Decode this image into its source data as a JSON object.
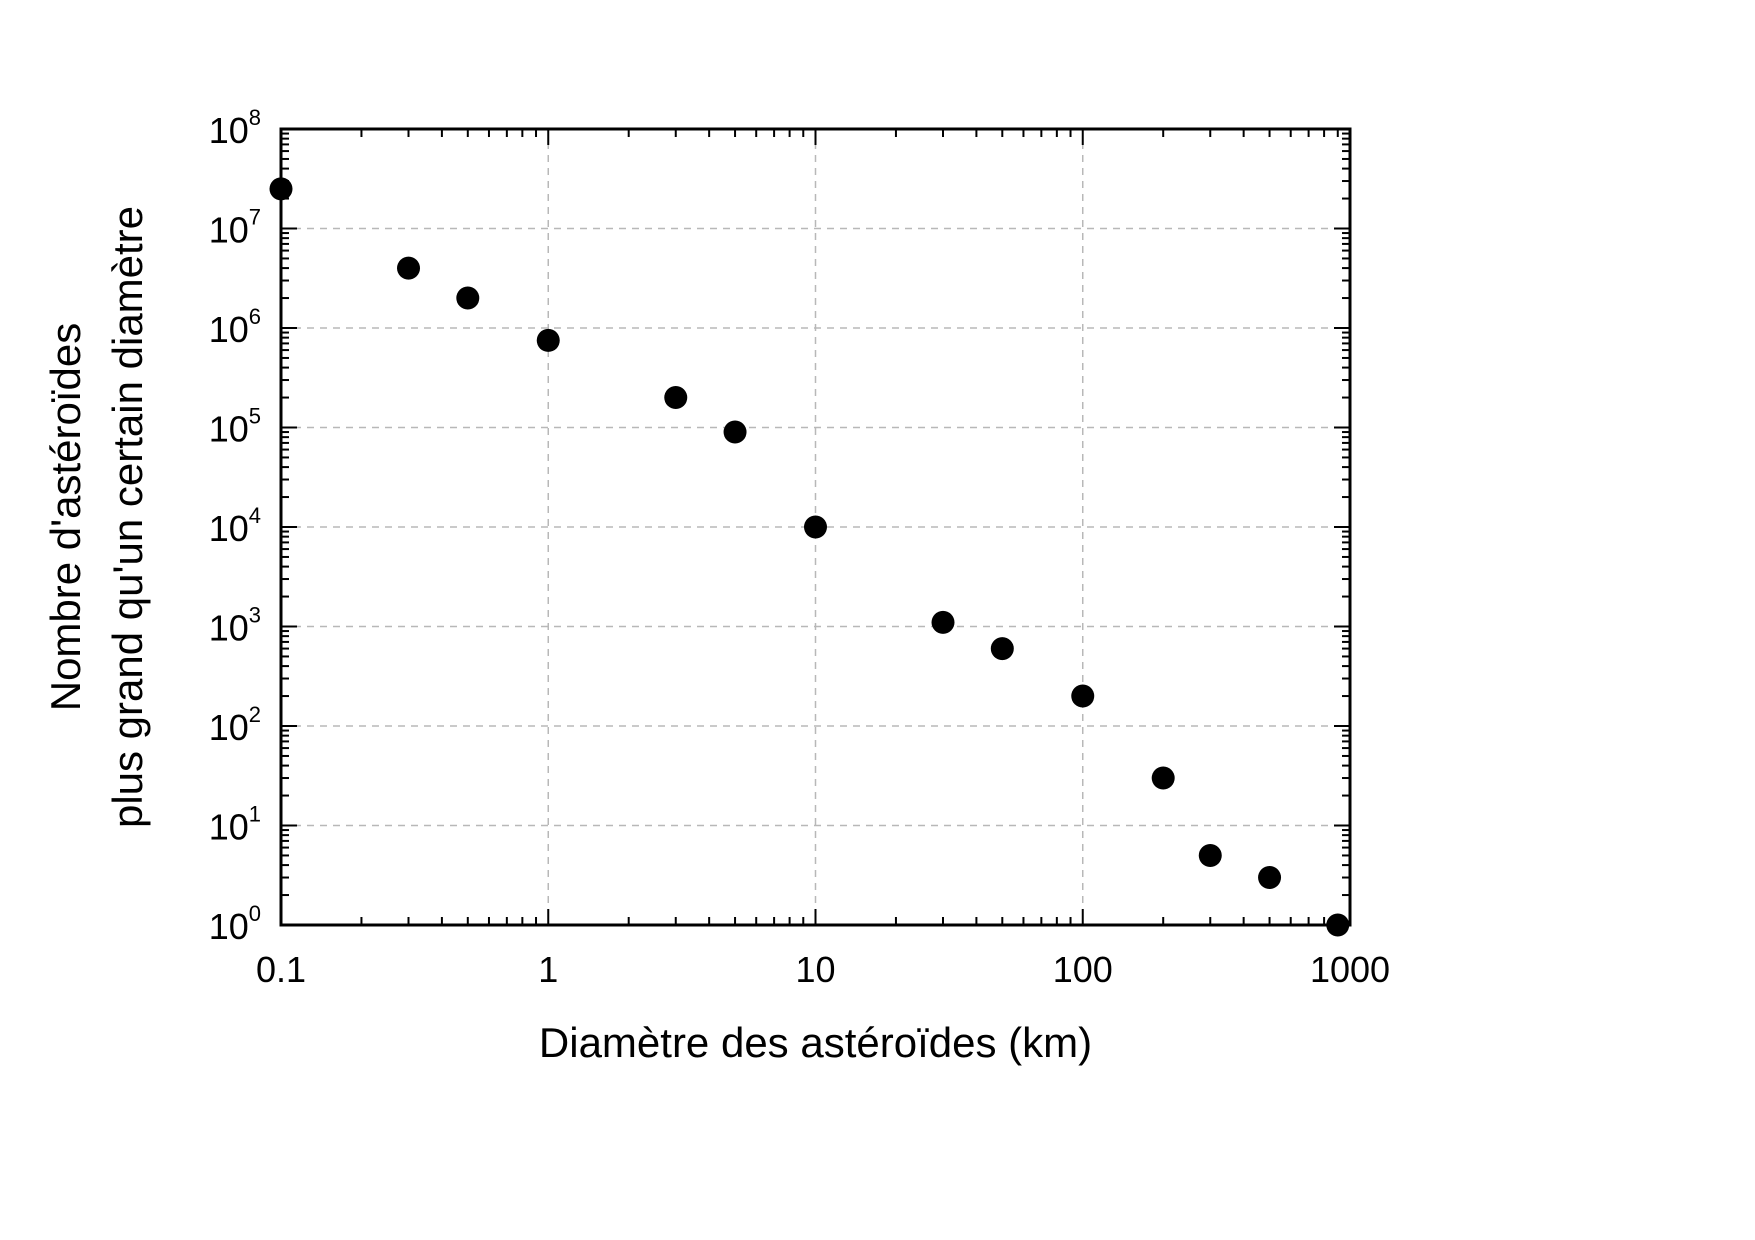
{
  "chart_data": {
    "type": "scatter",
    "title": "",
    "xlabel": "Diamètre des astéroïdes (km)",
    "ylabel_lines": [
      "Nombre d'astéroïdes",
      "plus grand qu'un certain diamètre"
    ],
    "x_scale": "log",
    "y_scale": "log",
    "xlim": [
      0.1,
      1000
    ],
    "ylim": [
      1,
      100000000
    ],
    "x_ticks": [
      {
        "value": 0.1,
        "label": "0.1"
      },
      {
        "value": 1,
        "label": "1"
      },
      {
        "value": 10,
        "label": "10"
      },
      {
        "value": 100,
        "label": "100"
      },
      {
        "value": 1000,
        "label": "1000"
      }
    ],
    "y_ticks": [
      {
        "value": 1,
        "base": "10",
        "exp": "0"
      },
      {
        "value": 10,
        "base": "10",
        "exp": "1"
      },
      {
        "value": 100,
        "base": "10",
        "exp": "2"
      },
      {
        "value": 1000,
        "base": "10",
        "exp": "3"
      },
      {
        "value": 10000,
        "base": "10",
        "exp": "4"
      },
      {
        "value": 100000,
        "base": "10",
        "exp": "5"
      },
      {
        "value": 1000000,
        "base": "10",
        "exp": "6"
      },
      {
        "value": 10000000,
        "base": "10",
        "exp": "7"
      },
      {
        "value": 100000000,
        "base": "10",
        "exp": "8"
      }
    ],
    "grid": true,
    "marker_color": "#000000",
    "points": [
      {
        "x": 0.1,
        "y": 25000000
      },
      {
        "x": 0.3,
        "y": 4000000
      },
      {
        "x": 0.5,
        "y": 2000000
      },
      {
        "x": 1,
        "y": 750000
      },
      {
        "x": 3,
        "y": 200000
      },
      {
        "x": 5,
        "y": 90000
      },
      {
        "x": 10,
        "y": 10000
      },
      {
        "x": 30,
        "y": 1100
      },
      {
        "x": 50,
        "y": 600
      },
      {
        "x": 100,
        "y": 200
      },
      {
        "x": 200,
        "y": 30
      },
      {
        "x": 300,
        "y": 5
      },
      {
        "x": 500,
        "y": 3
      },
      {
        "x": 900,
        "y": 1
      }
    ]
  }
}
